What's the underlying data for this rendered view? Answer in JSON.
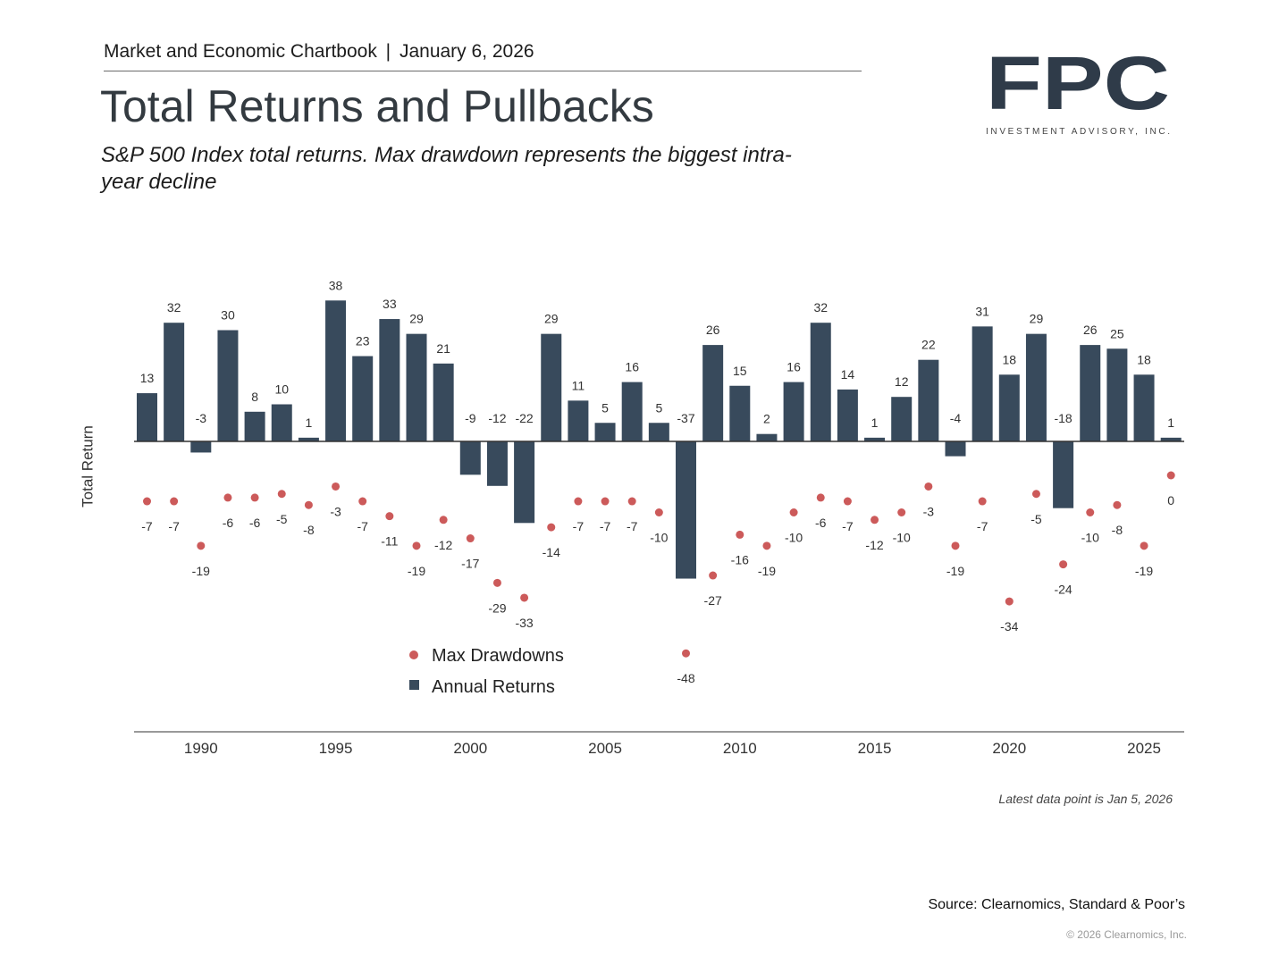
{
  "header": {
    "chartbook": "Market and Economic Chartbook",
    "separator": "|",
    "date": "January 6, 2026",
    "title": "Total Returns and Pullbacks",
    "subtitle": "S&P 500 Index total returns. Max drawdown represents the biggest intra-year decline"
  },
  "logo": {
    "wordmark": "FPC",
    "tagline": "INVESTMENT ADVISORY, INC.",
    "color": "#2f3b49"
  },
  "footer": {
    "note": "Latest data point is Jan 5, 2026",
    "source": "Source: Clearnomics, Standard & Poor’s",
    "copyright": "© 2026 Clearnomics, Inc."
  },
  "colors": {
    "bar": "#384a5c",
    "dot": "#cc5a5a",
    "axis": "#333333",
    "text": "#333333"
  },
  "chart_data": {
    "type": "bar",
    "ylabel": "Total Return",
    "ylim": [
      -50,
      40
    ],
    "legend_position": "bottom-center",
    "x": [
      1988,
      1989,
      1990,
      1991,
      1992,
      1993,
      1994,
      1995,
      1996,
      1997,
      1998,
      1999,
      2000,
      2001,
      2002,
      2003,
      2004,
      2005,
      2006,
      2007,
      2008,
      2009,
      2010,
      2011,
      2012,
      2013,
      2014,
      2015,
      2016,
      2017,
      2018,
      2019,
      2020,
      2021,
      2022,
      2023,
      2024,
      2025,
      2026
    ],
    "xticks": [
      "1990",
      "1995",
      "2000",
      "2005",
      "2010",
      "2015",
      "2020",
      "2025"
    ],
    "series": [
      {
        "name": "Annual Returns",
        "marker": "bar",
        "values": [
          13,
          32,
          -3,
          30,
          8,
          10,
          1,
          38,
          23,
          33,
          29,
          21,
          -9,
          -12,
          -22,
          29,
          11,
          5,
          16,
          5,
          -37,
          26,
          15,
          2,
          16,
          32,
          14,
          1,
          12,
          22,
          -4,
          31,
          18,
          29,
          -18,
          26,
          25,
          18,
          1
        ]
      },
      {
        "name": "Max Drawdowns",
        "marker": "dot",
        "values": [
          -7,
          -7,
          -19,
          -6,
          -6,
          -5,
          -8,
          -3,
          -7,
          -11,
          -19,
          -12,
          -17,
          -29,
          -33,
          -14,
          -7,
          -7,
          -7,
          -10,
          -48,
          -27,
          -16,
          -19,
          -10,
          -6,
          -7,
          -12,
          -10,
          -3,
          -19,
          -7,
          -34,
          -5,
          -24,
          -10,
          -8,
          -19,
          0
        ]
      }
    ]
  }
}
